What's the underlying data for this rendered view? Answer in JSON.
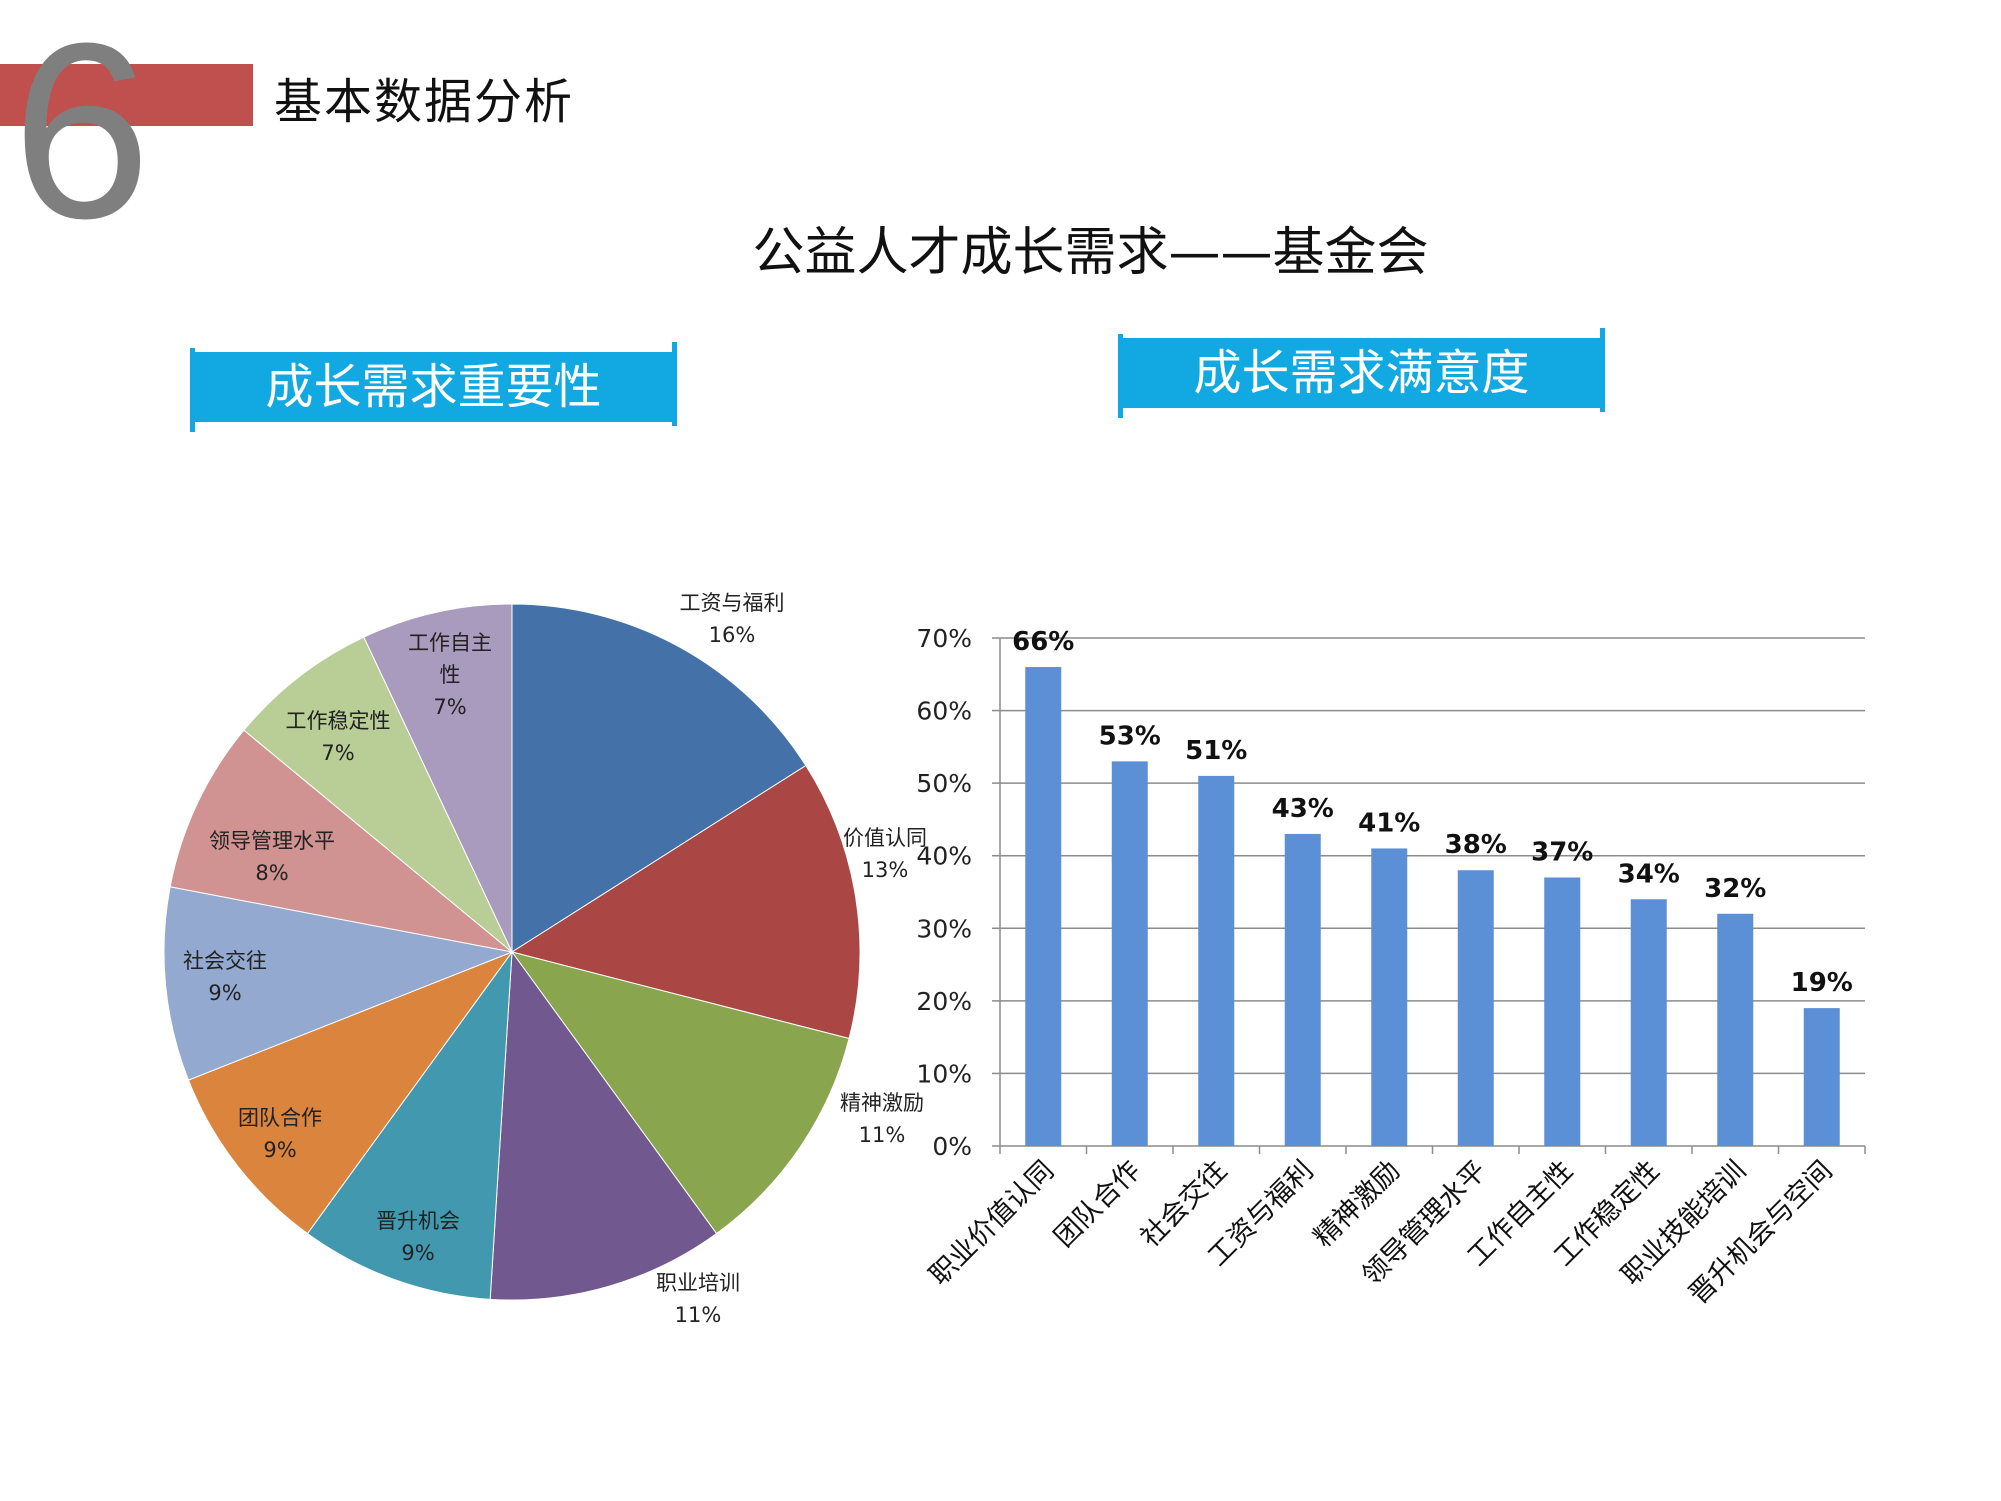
{
  "header": {
    "number": "6",
    "section_title": "基本数据分析",
    "main_title": "公益人才成长需求——基金会"
  },
  "tags": {
    "left": "成长需求重要性",
    "right": "成长需求满意度"
  },
  "colors": {
    "accent_red": "#c0504d",
    "tag_blue": "#12a9e3",
    "bar_blue": "#5b8fd6"
  },
  "chart_data": [
    {
      "type": "pie",
      "title": "",
      "slices": [
        {
          "label": "工资与福利",
          "percent": "16%",
          "value": 16,
          "color": "#4472a8"
        },
        {
          "label": "价值认同",
          "percent": "13%",
          "value": 13,
          "color": "#aa4744"
        },
        {
          "label": "精神激励",
          "percent": "11%",
          "value": 11,
          "color": "#89a54e"
        },
        {
          "label": "职业培训",
          "percent": "11%",
          "value": 11,
          "color": "#71588f"
        },
        {
          "label": "晋升机会",
          "percent": "9%",
          "value": 9,
          "color": "#4198af"
        },
        {
          "label": "团队合作",
          "percent": "9%",
          "value": 9,
          "color": "#db843d"
        },
        {
          "label": "社会交往",
          "percent": "9%",
          "value": 9,
          "color": "#93a9cf"
        },
        {
          "label": "领导管理水平",
          "percent": "8%",
          "value": 8,
          "color": "#d19392"
        },
        {
          "label": "工作稳定性",
          "percent": "7%",
          "value": 7,
          "color": "#b9cd96"
        },
        {
          "label": "工作自主性",
          "percent": "7%",
          "value": 7,
          "color": "#a99bbd"
        }
      ]
    },
    {
      "type": "bar",
      "title": "",
      "categories": [
        "职业价值认同",
        "团队合作",
        "社会交往",
        "工资与福利",
        "精神激励",
        "领导管理水平",
        "工作自主性",
        "工作稳定性",
        "职业技能培训",
        "晋升机会与空间"
      ],
      "values": [
        66,
        53,
        51,
        43,
        41,
        38,
        37,
        34,
        32,
        19
      ],
      "value_labels": [
        "66%",
        "53%",
        "51%",
        "43%",
        "41%",
        "38%",
        "37%",
        "34%",
        "32%",
        "19%"
      ],
      "ylim": [
        0,
        70
      ],
      "yticks": [
        "0%",
        "10%",
        "20%",
        "30%",
        "40%",
        "50%",
        "60%",
        "70%"
      ],
      "grid": true,
      "xlabel": "",
      "ylabel": ""
    }
  ]
}
